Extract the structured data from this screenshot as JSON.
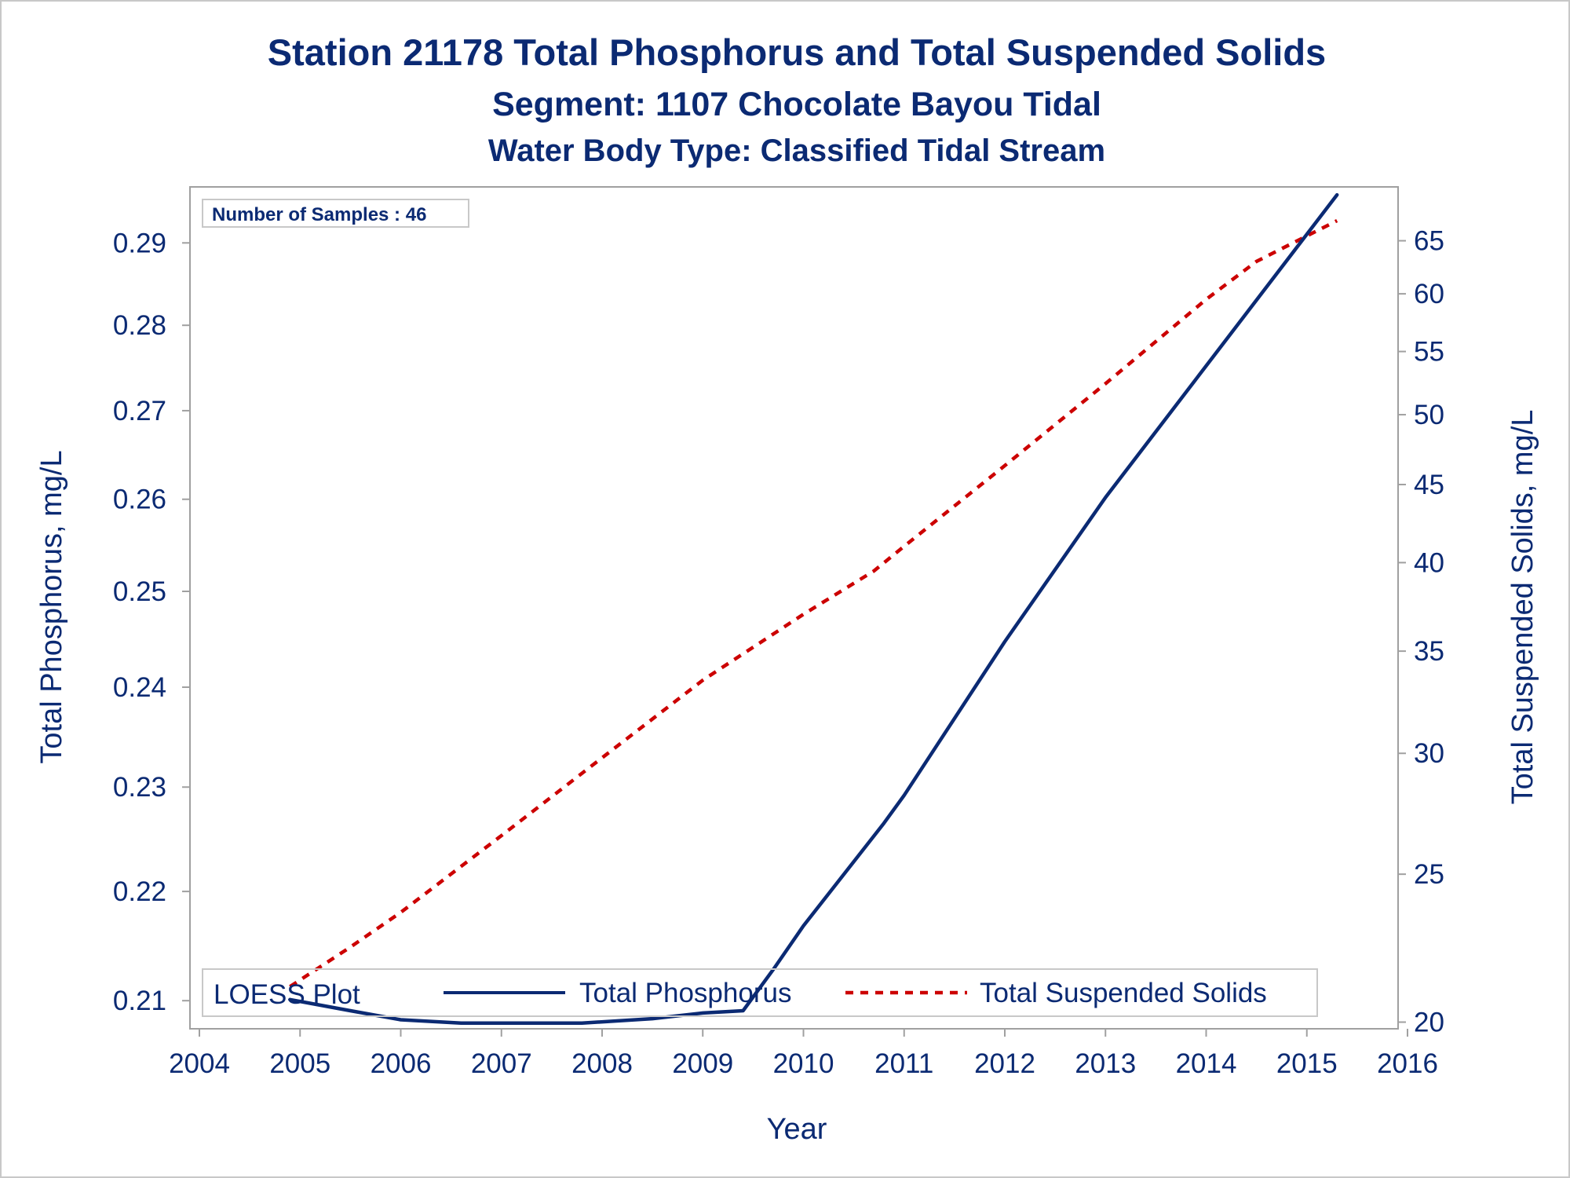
{
  "colors": {
    "text": "#0b2a73",
    "phosphorus": "#0b2a73",
    "tss": "#cc0000",
    "frame": "#a0a0a0"
  },
  "chart_data": {
    "type": "line",
    "title": "Station 21178  Total Phosphorus and Total Suspended Solids",
    "subtitle": "Segment: 1107  Chocolate Bayou Tidal",
    "subtitle2": "Water Body Type: Classified Tidal Stream",
    "xlabel": "Year",
    "ylabel": "Total Phosphorus, mg/L",
    "y2label": "Total Suspended Solids, mg/L",
    "inset": "Number of Samples : 46",
    "x_ticks": [
      2004,
      2005,
      2006,
      2007,
      2008,
      2009,
      2010,
      2011,
      2012,
      2013,
      2014,
      2015,
      2016
    ],
    "xlim": [
      2004,
      2016
    ],
    "y_ticks": [
      0.21,
      0.22,
      0.23,
      0.24,
      0.25,
      0.26,
      0.27,
      0.28,
      0.29
    ],
    "ylim": [
      0.2075,
      0.297
    ],
    "y_scale": "log",
    "y2_ticks": [
      20,
      25,
      30,
      35,
      40,
      45,
      50,
      55,
      60,
      65
    ],
    "y2lim": [
      19.8,
      70.5
    ],
    "y2_scale": "log",
    "grid": false,
    "legend": {
      "title": "LOESS Plot",
      "placement": "bottom-left, inside plot",
      "entries": [
        "Total Phosphorus",
        "Total Suspended Solids"
      ]
    },
    "series": [
      {
        "name": "Total Phosphorus",
        "axis": "left",
        "style": "solid",
        "x": [
          2004.9,
          2005.5,
          2006.0,
          2006.6,
          2007.0,
          2007.5,
          2007.8,
          2008.5,
          2009.0,
          2009.4,
          2009.7,
          2010.0,
          2010.8,
          2011.0,
          2012.0,
          2013.0,
          2014.0,
          2015.3
        ],
        "y": [
          0.2101,
          0.2091,
          0.2083,
          0.208,
          0.208,
          0.208,
          0.208,
          0.2084,
          0.2089,
          0.2091,
          0.2128,
          0.2168,
          0.2265,
          0.2292,
          0.2447,
          0.2602,
          0.2752,
          0.296
        ]
      },
      {
        "name": "Total Suspended Solids",
        "axis": "right",
        "style": "dashed",
        "x": [
          2004.9,
          2005.5,
          2006.0,
          2007.0,
          2008.0,
          2009.0,
          2010.0,
          2010.7,
          2011.0,
          2012.0,
          2013.0,
          2014.0,
          2014.5,
          2015.3
        ],
        "y": [
          21.1,
          22.4,
          23.6,
          26.5,
          29.8,
          33.5,
          37.0,
          39.5,
          41.0,
          46.3,
          52.4,
          59.5,
          63.0,
          67.0
        ]
      }
    ]
  }
}
